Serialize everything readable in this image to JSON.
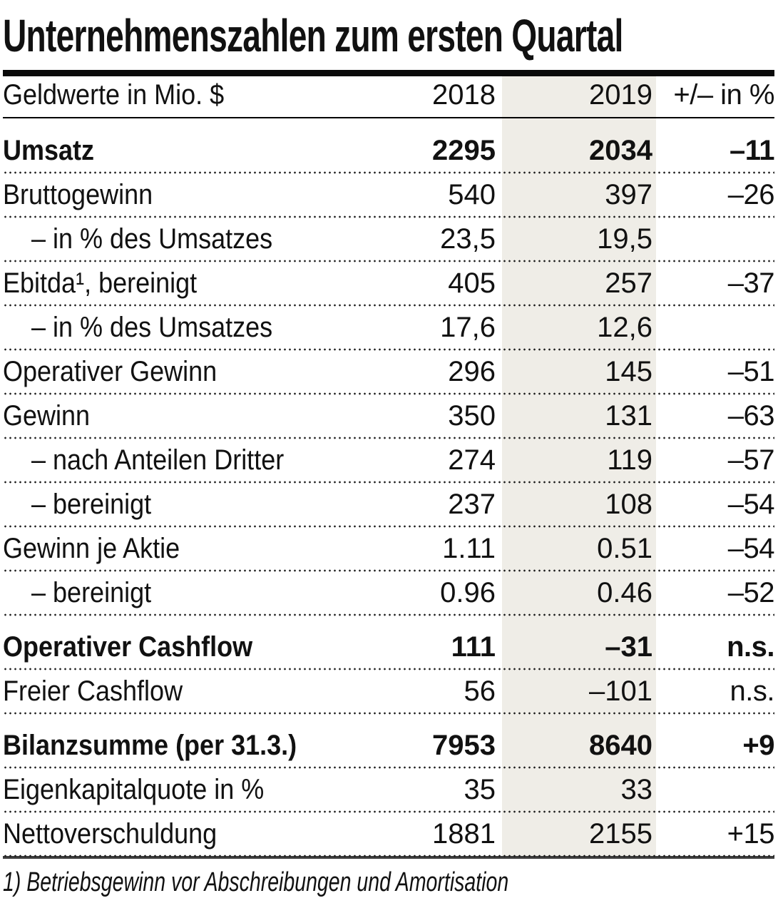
{
  "title": "Unternehmenszahlen zum ersten Quartal",
  "table": {
    "header": {
      "metric": "Geldwerte in Mio. $",
      "col2018": "2018",
      "col2019": "2019",
      "change": "+/– in %"
    },
    "rows": [
      {
        "label": "Umsatz",
        "v2018": "2295",
        "v2019": "2034",
        "change": "–11",
        "bold": true,
        "indent": false,
        "section_start": true
      },
      {
        "label": "Bruttogewinn",
        "v2018": "540",
        "v2019": "397",
        "change": "–26",
        "bold": false,
        "indent": false,
        "section_start": false
      },
      {
        "label": "– in % des Umsatzes",
        "v2018": "23,5",
        "v2019": "19,5",
        "change": "",
        "bold": false,
        "indent": true,
        "section_start": false
      },
      {
        "label": "Ebitda¹, bereinigt",
        "v2018": "405",
        "v2019": "257",
        "change": "–37",
        "bold": false,
        "indent": false,
        "section_start": false
      },
      {
        "label": "– in % des Umsatzes",
        "v2018": "17,6",
        "v2019": "12,6",
        "change": "",
        "bold": false,
        "indent": true,
        "section_start": false
      },
      {
        "label": "Operativer Gewinn",
        "v2018": "296",
        "v2019": "145",
        "change": "–51",
        "bold": false,
        "indent": false,
        "section_start": false
      },
      {
        "label": "Gewinn",
        "v2018": "350",
        "v2019": "131",
        "change": "–63",
        "bold": false,
        "indent": false,
        "section_start": false
      },
      {
        "label": "– nach Anteilen Dritter",
        "v2018": "274",
        "v2019": "119",
        "change": "–57",
        "bold": false,
        "indent": true,
        "section_start": false
      },
      {
        "label": "– bereinigt",
        "v2018": "237",
        "v2019": "108",
        "change": "–54",
        "bold": false,
        "indent": true,
        "section_start": false
      },
      {
        "label": "Gewinn je Aktie",
        "v2018": "1.11",
        "v2019": "0.51",
        "change": "–54",
        "bold": false,
        "indent": false,
        "section_start": false
      },
      {
        "label": "– bereinigt",
        "v2018": "0.96",
        "v2019": "0.46",
        "change": "–52",
        "bold": false,
        "indent": true,
        "section_start": false
      },
      {
        "label": "Operativer Cashflow",
        "v2018": "111",
        "v2019": "–31",
        "change": "n.s.",
        "bold": true,
        "indent": false,
        "section_start": true
      },
      {
        "label": "Freier Cashflow",
        "v2018": "56",
        "v2019": "–101",
        "change": "n.s.",
        "bold": false,
        "indent": false,
        "section_start": false
      },
      {
        "label": "Bilanzsumme (per 31.3.)",
        "v2018": "7953",
        "v2019": "8640",
        "change": "+9",
        "bold": true,
        "indent": false,
        "section_start": true
      },
      {
        "label": "Eigenkapitalquote in %",
        "v2018": "35",
        "v2019": "33",
        "change": "",
        "bold": false,
        "indent": false,
        "section_start": false
      },
      {
        "label": "Nettoverschuldung",
        "v2018": "1881",
        "v2019": "2155",
        "change": "+15",
        "bold": false,
        "indent": false,
        "section_start": false
      }
    ]
  },
  "footnote": "1) Betriebsgewinn vor Abschreibungen und Amortisation",
  "colors": {
    "text": "#111111",
    "highlight_band": "#efede7",
    "title_rule": "#0a0a0a",
    "bottom_rule": "#3c3c3c"
  }
}
